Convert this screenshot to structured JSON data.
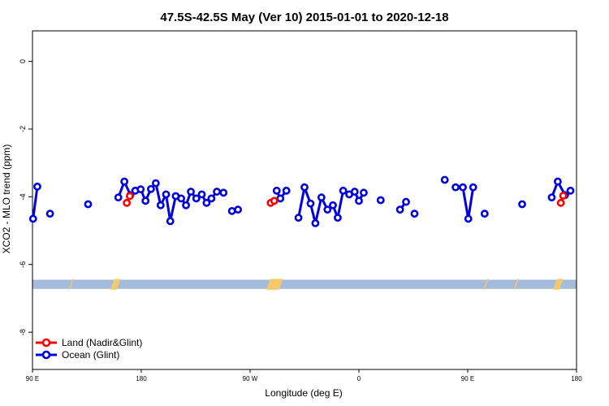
{
  "chart_data": {
    "type": "line",
    "title": "47.5S-42.5S May (Ver 10)   2015-01-01 to 2020-12-18",
    "xlabel": "Longitude (deg E)",
    "ylabel": "XCO2 - MLO trend (ppm)",
    "xlim": [
      90,
      540
    ],
    "ylim": [
      -9.1,
      0.9
    ],
    "x_tick_values": [
      90,
      180,
      270,
      360,
      450,
      540
    ],
    "x_tick_labels": [
      "90 E",
      "180",
      "90 W",
      "0",
      "90 E",
      "180"
    ],
    "y_tick_values": [
      0,
      -2,
      -4,
      -6,
      -8
    ],
    "y_tick_labels": [
      "0",
      "-2",
      "-4",
      "-6",
      "-8"
    ],
    "legend_position": "bottom-left",
    "land_band": {
      "y_range": [
        -6.72,
        -6.45
      ],
      "color": "#a4bbdc",
      "land_color": "#f5c96b"
    },
    "series": [
      {
        "name": "Land (Nadir&Glint)",
        "color": "#ff0000",
        "segments": [
          [
            [
              168,
              -4.18
            ],
            [
              170.5,
              -3.98
            ]
          ],
          [
            [
              287,
              -4.18
            ],
            [
              290,
              -4.12
            ]
          ],
          [
            [
              527,
              -4.18
            ],
            [
              529,
              -3.97
            ]
          ]
        ]
      },
      {
        "name": "Ocean (Glint)",
        "color": "#0000dd",
        "segments": [
          [
            [
              90.5,
              -4.65
            ],
            [
              94,
              -3.7
            ]
          ],
          [
            [
              104.5,
              -4.5
            ]
          ],
          [
            [
              136,
              -4.22
            ]
          ],
          [
            [
              161,
              -4.02
            ],
            [
              166,
              -3.55
            ],
            [
              171,
              -3.95
            ],
            [
              175,
              -3.82
            ],
            [
              179.5,
              -3.78
            ],
            [
              183.5,
              -4.12
            ],
            [
              188,
              -3.77
            ],
            [
              192,
              -3.6
            ],
            [
              196,
              -4.25
            ],
            [
              200.5,
              -3.93
            ],
            [
              204,
              -4.72
            ],
            [
              208.5,
              -3.98
            ],
            [
              213,
              -4.05
            ],
            [
              217,
              -4.25
            ],
            [
              221,
              -3.85
            ],
            [
              225.5,
              -4.05
            ],
            [
              230,
              -3.93
            ],
            [
              234,
              -4.18
            ],
            [
              238,
              -4.05
            ],
            [
              242.5,
              -3.85
            ],
            [
              248,
              -3.88
            ]
          ],
          [
            [
              255,
              -4.42
            ],
            [
              260,
              -4.38
            ]
          ],
          [
            [
              292,
              -3.82
            ],
            [
              295,
              -4.05
            ],
            [
              300,
              -3.82
            ]
          ],
          [
            [
              310,
              -4.62
            ],
            [
              315,
              -3.72
            ],
            [
              320,
              -4.2
            ],
            [
              324,
              -4.78
            ],
            [
              329,
              -4.02
            ],
            [
              334,
              -4.38
            ],
            [
              338.5,
              -4.25
            ],
            [
              342.5,
              -4.62
            ],
            [
              347,
              -3.82
            ],
            [
              352,
              -3.93
            ],
            [
              356.5,
              -3.85
            ],
            [
              360,
              -4.12
            ],
            [
              364,
              -3.88
            ]
          ],
          [
            [
              378,
              -4.1
            ]
          ],
          [
            [
              394,
              -4.38
            ],
            [
              399,
              -4.15
            ]
          ],
          [
            [
              406,
              -4.5
            ]
          ],
          [
            [
              431,
              -3.5
            ]
          ],
          [
            [
              440,
              -3.72
            ],
            [
              446,
              -3.72
            ],
            [
              450.5,
              -4.65
            ],
            [
              454.5,
              -3.72
            ]
          ],
          [
            [
              464,
              -4.5
            ]
          ],
          [
            [
              495,
              -4.22
            ]
          ],
          [
            [
              519.5,
              -4.02
            ],
            [
              524.5,
              -3.55
            ],
            [
              530.5,
              -3.95
            ],
            [
              535,
              -3.82
            ]
          ]
        ]
      }
    ]
  }
}
